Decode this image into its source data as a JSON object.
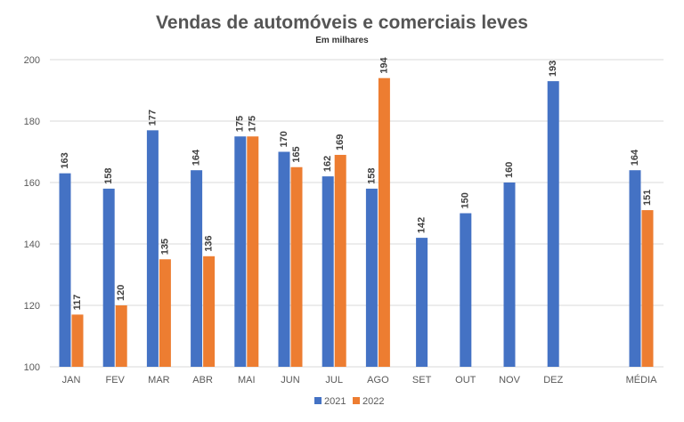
{
  "chart_data": {
    "type": "bar",
    "title": "Vendas de automóveis e comerciais leves",
    "subtitle": "Em milhares",
    "categories": [
      "JAN",
      "FEV",
      "MAR",
      "ABR",
      "MAI",
      "JUN",
      "JUL",
      "AGO",
      "SET",
      "OUT",
      "NOV",
      "DEZ",
      "MÉDIA"
    ],
    "series": [
      {
        "name": "2021",
        "color": "#4472C4",
        "values": [
          163,
          158,
          177,
          164,
          175,
          170,
          162,
          158,
          142,
          150,
          160,
          193,
          164
        ]
      },
      {
        "name": "2022",
        "color": "#ED7D31",
        "values": [
          117,
          120,
          135,
          136,
          175,
          165,
          169,
          194,
          null,
          null,
          null,
          null,
          151
        ]
      }
    ],
    "ylim": [
      100,
      200
    ],
    "yticks": [
      100,
      120,
      140,
      160,
      180,
      200
    ],
    "grid": true,
    "legend_position": "bottom"
  }
}
